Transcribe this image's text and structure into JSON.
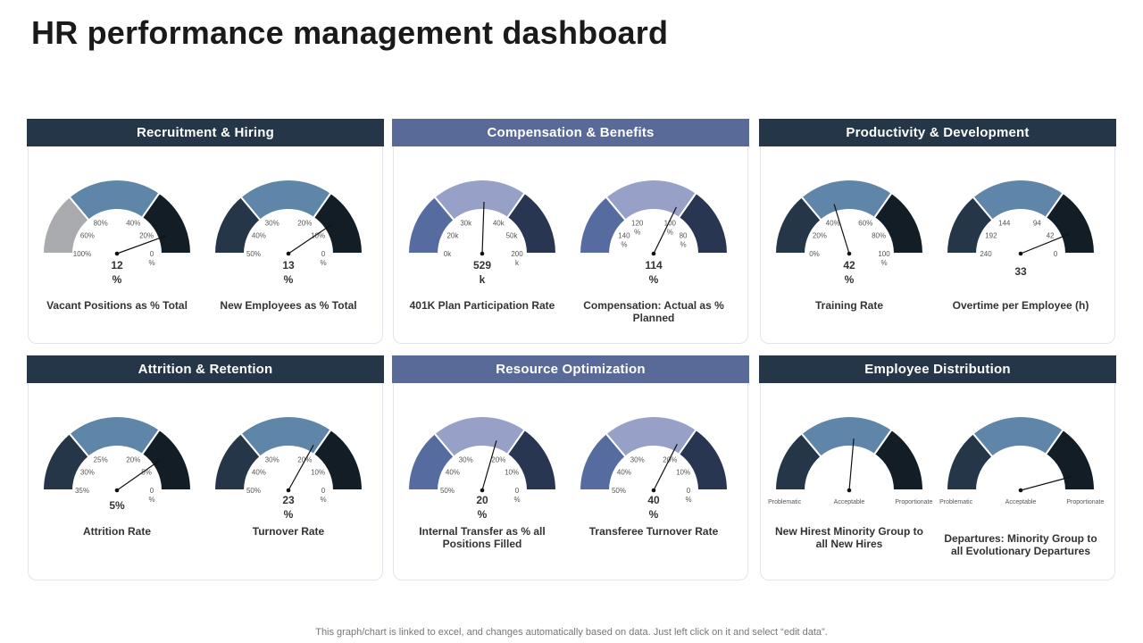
{
  "page": {
    "title": "HR performance management dashboard",
    "footer": "This graph/chart is linked to excel,  and changes automatically based on data. Just left click on it and select “edit data”."
  },
  "colors": {
    "dark_header": "#243647",
    "blue_header": "#5a6a98",
    "teal_dark": "#243647",
    "teal_mid": "#5f86a8",
    "teal_black": "#121d26",
    "gray": "#a9abae",
    "navy_left": "#566b9f",
    "navy_mid": "#97a1c7",
    "navy_right": "#283652"
  },
  "chart_data": [
    {
      "type": "gauge",
      "section": "Recruitment & Hiring",
      "label": "Vacant Positions as % Total",
      "value": 12,
      "value_text": "12\n%",
      "ticks": [
        "100%",
        "60%",
        "80%",
        "40%",
        "20%",
        "0\n%"
      ],
      "scale_min": 0,
      "scale_max": 100,
      "reversed": true
    },
    {
      "type": "gauge",
      "section": "Recruitment & Hiring",
      "label": "New Employees as % Total",
      "value": 13,
      "value_text": "13\n%",
      "ticks": [
        "50%",
        "40%",
        "30%",
        "20%",
        "10%",
        "0\n%"
      ],
      "scale_min": 0,
      "scale_max": 50,
      "reversed": true
    },
    {
      "type": "gauge",
      "section": "Compensation & Benefits",
      "label": "401K Plan Participation Rate",
      "value": 529,
      "value_text": "529\nk",
      "ticks": [
        "0k",
        "20k",
        "30k",
        "40k",
        "50k",
        "200\nk"
      ]
    },
    {
      "type": "gauge",
      "section": "Compensation & Benefits",
      "label": "Compensation: Actual as % Planned",
      "value": 114,
      "value_text": "114\n%",
      "ticks": [
        "140\n%",
        "120\n%",
        "100\n%",
        "80\n%"
      ]
    },
    {
      "type": "gauge",
      "section": "Productivity & Development",
      "label": "Training Rate",
      "value": 42,
      "value_text": "42\n%",
      "ticks": [
        "0%",
        "20%",
        "40%",
        "60%",
        "80%",
        "100\n%"
      ],
      "scale_min": 0,
      "scale_max": 100
    },
    {
      "type": "gauge",
      "section": "Productivity & Development",
      "label": "Overtime per Employee (h)",
      "value": 33,
      "value_text": "33",
      "ticks": [
        "240",
        "192",
        "144",
        "94",
        "42",
        "0"
      ],
      "scale_min": 0,
      "scale_max": 240,
      "reversed": true
    },
    {
      "type": "gauge",
      "section": "Attrition & Retention",
      "label": "Attrition Rate",
      "value": 5,
      "value_text": "5%",
      "ticks": [
        "35%",
        "30%",
        "25%",
        "20%",
        "5%",
        "0\n%"
      ]
    },
    {
      "type": "gauge",
      "section": "Attrition & Retention",
      "label": "Turnover Rate",
      "value": 23,
      "value_text": "23\n%",
      "ticks": [
        "50%",
        "40%",
        "30%",
        "20%",
        "10%",
        "0\n%"
      ],
      "scale_min": 0,
      "scale_max": 50,
      "reversed": true
    },
    {
      "type": "gauge",
      "section": "Resource Optimization",
      "label": "Internal Transfer as % all Positions Filled",
      "value": 20,
      "value_text": "20\n%",
      "ticks": [
        "50%",
        "40%",
        "30%",
        "20%",
        "10%",
        "0\n%"
      ],
      "scale_min": 0,
      "scale_max": 50,
      "reversed": true
    },
    {
      "type": "gauge",
      "section": "Resource Optimization",
      "label": "Transferee Turnover Rate",
      "value": 40,
      "value_text": "40\n%",
      "ticks": [
        "50%",
        "40%",
        "30%",
        "20%",
        "10%",
        "0\n%"
      ],
      "scale_min": 0,
      "scale_max": 50,
      "reversed": true
    },
    {
      "type": "gauge",
      "section": "Employee Distribution",
      "label": "New Hirest Minority Group to all New Hires",
      "value_text": "",
      "ticks": [
        "Problematic",
        "Acceptable",
        "Proportionate"
      ]
    },
    {
      "type": "gauge",
      "section": "Employee Distribution",
      "label": "Departures: Minority Group to all Evolutionary Departures",
      "value_text": "",
      "ticks": [
        "Problematic",
        "Acceptable",
        "Proportionate"
      ]
    }
  ]
}
